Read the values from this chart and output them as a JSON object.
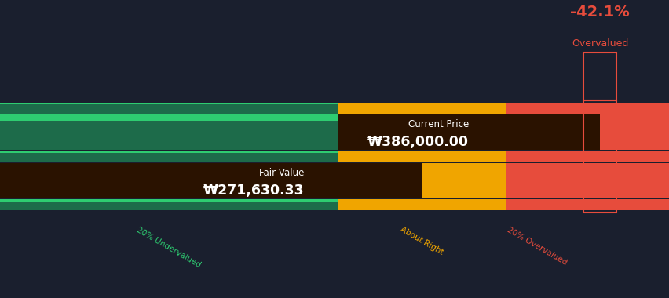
{
  "background_color": "#1a1f2e",
  "fair_value": 271630.33,
  "current_price": 386000.0,
  "total_width": 431000,
  "pct_text": "-42.1%",
  "overvalued_text": "Overvalued",
  "current_price_label": "Current Price",
  "fair_value_label": "Fair Value",
  "current_price_str": "₩386,000.00",
  "fair_value_str": "₩271,630.33",
  "zone_under_label": "20% Undervalued",
  "zone_right_label": "About Right",
  "zone_over_label": "20% Overvalued",
  "color_green_light": "#2ecc71",
  "color_green_dark": "#1d6b4a",
  "color_yellow": "#f0a500",
  "color_red": "#e74c3c",
  "color_dark_overlay": "#2a1200",
  "color_bg": "#1a1f2e",
  "thin_bar_height": 0.055,
  "thick_bar_height": 0.185,
  "bar_gap": 0.005
}
